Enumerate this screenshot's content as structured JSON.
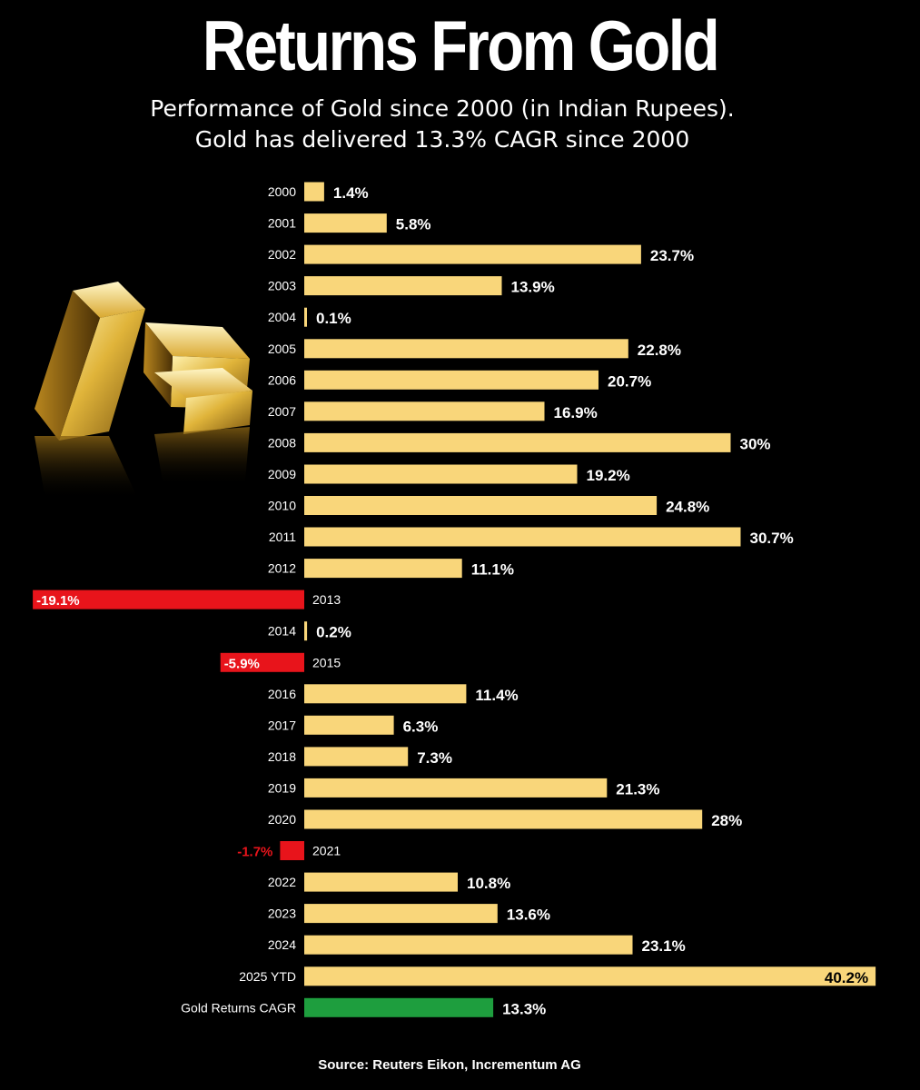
{
  "header": {
    "title": "Returns From Gold",
    "subtitle_line1": "Performance of Gold since 2000 (in Indian Rupees).",
    "subtitle_line2": "Gold has delivered 13.3% CAGR since 2000"
  },
  "footer": {
    "source": "Source: Reuters Eikon, Incrementum AG"
  },
  "colors": {
    "positive": "#F9D67A",
    "negative": "#E8141B",
    "cagr": "#1E9E3E",
    "background": "#000000"
  },
  "chart_data": {
    "type": "bar",
    "orientation": "horizontal",
    "title": "Returns From Gold",
    "xlabel": "",
    "ylabel": "",
    "unit": "%",
    "categories": [
      "2000",
      "2001",
      "2002",
      "2003",
      "2004",
      "2005",
      "2006",
      "2007",
      "2008",
      "2009",
      "2010",
      "2011",
      "2012",
      "2013",
      "2014",
      "2015",
      "2016",
      "2017",
      "2018",
      "2019",
      "2020",
      "2021",
      "2022",
      "2023",
      "2024",
      "2025 YTD",
      "Gold Returns CAGR"
    ],
    "values": [
      1.4,
      5.8,
      23.7,
      13.9,
      0.1,
      22.8,
      20.7,
      16.9,
      30,
      19.2,
      24.8,
      30.7,
      11.1,
      -19.1,
      0.2,
      -5.9,
      11.4,
      6.3,
      7.3,
      21.3,
      28,
      -1.7,
      10.8,
      13.6,
      23.1,
      40.2,
      13.3
    ],
    "labels": [
      "1.4%",
      "5.8%",
      "23.7%",
      "13.9%",
      "0.1%",
      "22.8%",
      "20.7%",
      "16.9%",
      "30%",
      "19.2%",
      "24.8%",
      "30.7%",
      "11.1%",
      "-19.1%",
      "0.2%",
      "-5.9%",
      "11.4%",
      "6.3%",
      "7.3%",
      "21.3%",
      "28%",
      "-1.7%",
      "10.8%",
      "13.6%",
      "23.1%",
      "40.2%",
      "13.3%"
    ],
    "highlight": {
      "category": "Gold Returns CAGR",
      "value": 13.3
    },
    "xlim": [
      -19.1,
      40.2
    ],
    "grid": false,
    "legend": "none"
  }
}
